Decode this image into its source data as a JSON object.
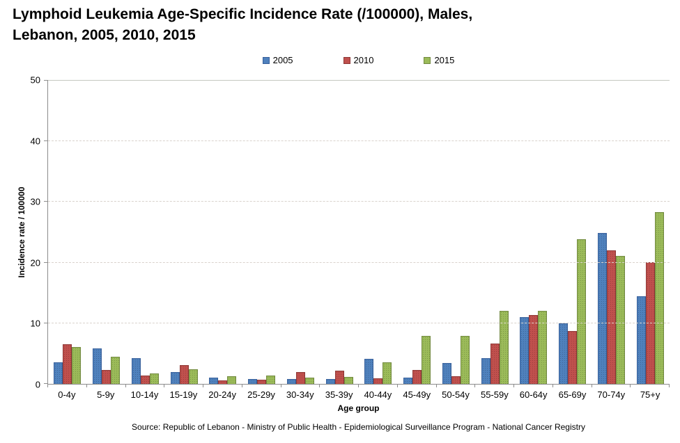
{
  "title": {
    "line1": "Lymphoid Leukemia Age-Specific Incidence Rate (/100000), Males,",
    "line2": "Lebanon, 2005, 2010, 2015"
  },
  "source": "Source: Republic of Lebanon - Ministry of Public Health - Epidemiological Surveillance Program - National Cancer Registry",
  "chart_data": {
    "type": "bar",
    "title": "Lymphoid Leukemia Age-Specific Incidence Rate (/100000), Males, Lebanon, 2005, 2010, 2015",
    "categories": [
      "0-4y",
      "5-9y",
      "10-14y",
      "15-19y",
      "20-24y",
      "25-29y",
      "30-34y",
      "35-39y",
      "40-44y",
      "45-49y",
      "50-54y",
      "55-59y",
      "60-64y",
      "65-69y",
      "70-74y",
      "75+y"
    ],
    "series": [
      {
        "name": "2005",
        "color": "#4F81BD",
        "border": "#38609B",
        "values": [
          3.6,
          5.8,
          4.2,
          1.9,
          1.0,
          0.8,
          0.8,
          0.8,
          4.1,
          1.0,
          3.4,
          4.3,
          11.0,
          10.0,
          24.9,
          14.5
        ]
      },
      {
        "name": "2010",
        "color": "#C0504D",
        "border": "#8E3836",
        "values": [
          6.5,
          2.3,
          1.4,
          3.1,
          0.6,
          0.7,
          2.0,
          2.2,
          0.9,
          2.3,
          1.3,
          6.7,
          11.4,
          8.7,
          22.0,
          20.1
        ]
      },
      {
        "name": "2015",
        "color": "#9BBB59",
        "border": "#71893F",
        "values": [
          6.1,
          4.5,
          1.7,
          2.4,
          1.3,
          1.4,
          1.0,
          1.1,
          3.5,
          7.9,
          7.9,
          12.1,
          12.0,
          23.9,
          21.1,
          28.3
        ]
      }
    ],
    "xlabel": "Age group",
    "ylabel": "Incidence rate / 100000",
    "ylim": [
      0,
      50
    ],
    "yticks": [
      0,
      10,
      20,
      30,
      40,
      50
    ],
    "grid": "horizontal-dashed",
    "legend_position": "top-center"
  }
}
